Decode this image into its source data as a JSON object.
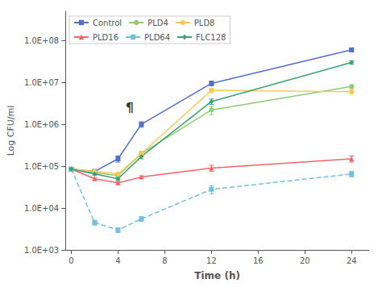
{
  "chart_data": {
    "type": "line",
    "xlabel": "Time (h)",
    "ylabel": "Log CFU/ml",
    "x": [
      0,
      2,
      4,
      6,
      12,
      24
    ],
    "series": [
      {
        "name": "Control",
        "values": [
          85000,
          75000,
          150000,
          1000000,
          9500000,
          60000000
        ],
        "yerr": [
          3000,
          6000,
          25000,
          150000,
          1200000,
          6000000
        ],
        "marker": "square",
        "line_style": "solid"
      },
      {
        "name": "PLD4",
        "values": [
          85000,
          70000,
          60000,
          200000,
          2200000,
          8000000
        ],
        "yerr": [
          3000,
          5000,
          5000,
          25000,
          500000,
          800000
        ],
        "marker": "circle",
        "line_style": "solid"
      },
      {
        "name": "PLD8",
        "values": [
          85000,
          75000,
          65000,
          200000,
          6500000,
          6000000
        ],
        "yerr": [
          3000,
          5000,
          5000,
          20000,
          800000,
          800000
        ],
        "marker": "circle",
        "line_style": "solid"
      },
      {
        "name": "PLD16",
        "values": [
          85000,
          50000,
          40000,
          55000,
          90000,
          150000
        ],
        "yerr": [
          3000,
          4000,
          3000,
          4000,
          15000,
          25000
        ],
        "marker": "triangle",
        "line_style": "solid"
      },
      {
        "name": "PLD64",
        "values": [
          85000,
          4500,
          3000,
          5500,
          28000,
          65000
        ],
        "yerr": [
          3000,
          600,
          400,
          700,
          6000,
          10000
        ],
        "marker": "square",
        "line_style": "dashed"
      },
      {
        "name": "FLC128",
        "values": [
          85000,
          65000,
          50000,
          170000,
          3500000,
          30000000
        ],
        "yerr": [
          3000,
          5000,
          4000,
          20000,
          500000,
          3000000
        ],
        "marker": "diamond",
        "line_style": "solid"
      }
    ],
    "xlim": [
      -0.5,
      25.5
    ],
    "xticks": [
      0,
      4,
      8,
      12,
      16,
      20,
      24
    ],
    "ylim": [
      1000,
      500000000
    ],
    "yticks": [
      {
        "value": 1000,
        "label": "1.0E+03"
      },
      {
        "value": 10000,
        "label": "1.0E+04"
      },
      {
        "value": 100000,
        "label": "1.0E+05"
      },
      {
        "value": 1000000,
        "label": "1.0E+06"
      },
      {
        "value": 10000000,
        "label": "1.0E+07"
      },
      {
        "value": 100000000,
        "label": "1.0E+08"
      }
    ],
    "log": "y",
    "grid": false,
    "legend": "upper left",
    "annotations": [
      {
        "text": "¶",
        "x": 5,
        "y": 2500000
      }
    ]
  }
}
